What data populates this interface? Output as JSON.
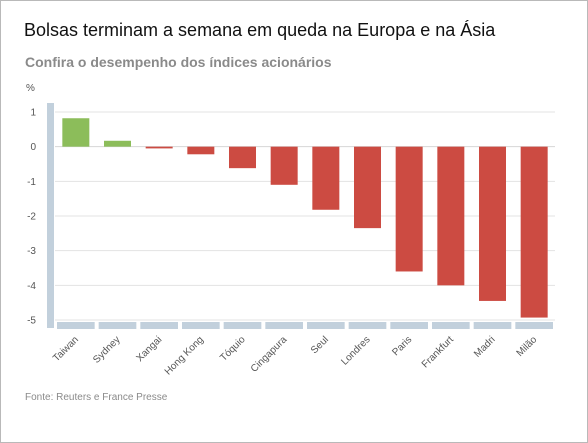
{
  "header": {
    "title": "Bolsas terminam a semana em queda na Europa e na Ásia",
    "subtitle": "Confira o desempenho dos índices acionários"
  },
  "footer": {
    "source": "Fonte: Reuters e France Presse"
  },
  "colors": {
    "positive": "#8cbd5a",
    "negative": "#cc4b42",
    "axis": "#c2d0dc",
    "grid": "#e3e3e3"
  },
  "chart_data": {
    "type": "bar",
    "title": "Bolsas terminam a semana em queda na Europa e na Ásia",
    "subtitle": "Confira o desempenho dos índices acionários",
    "ylabel": "%",
    "xlabel": "",
    "ylim": [
      -5,
      1
    ],
    "yticks": [
      1,
      0,
      -1,
      -2,
      -3,
      -4,
      -5
    ],
    "grid": true,
    "categories": [
      "Taiwan",
      "Sydney",
      "Xangai",
      "Hong Kong",
      "Tóquio",
      "Cingapura",
      "Seul",
      "Londres",
      "Paris",
      "Frankfurt",
      "Madri",
      "Milão"
    ],
    "values": [
      0.82,
      0.17,
      -0.05,
      -0.22,
      -0.62,
      -1.1,
      -1.82,
      -2.35,
      -3.6,
      -4.0,
      -4.45,
      -4.93
    ]
  }
}
